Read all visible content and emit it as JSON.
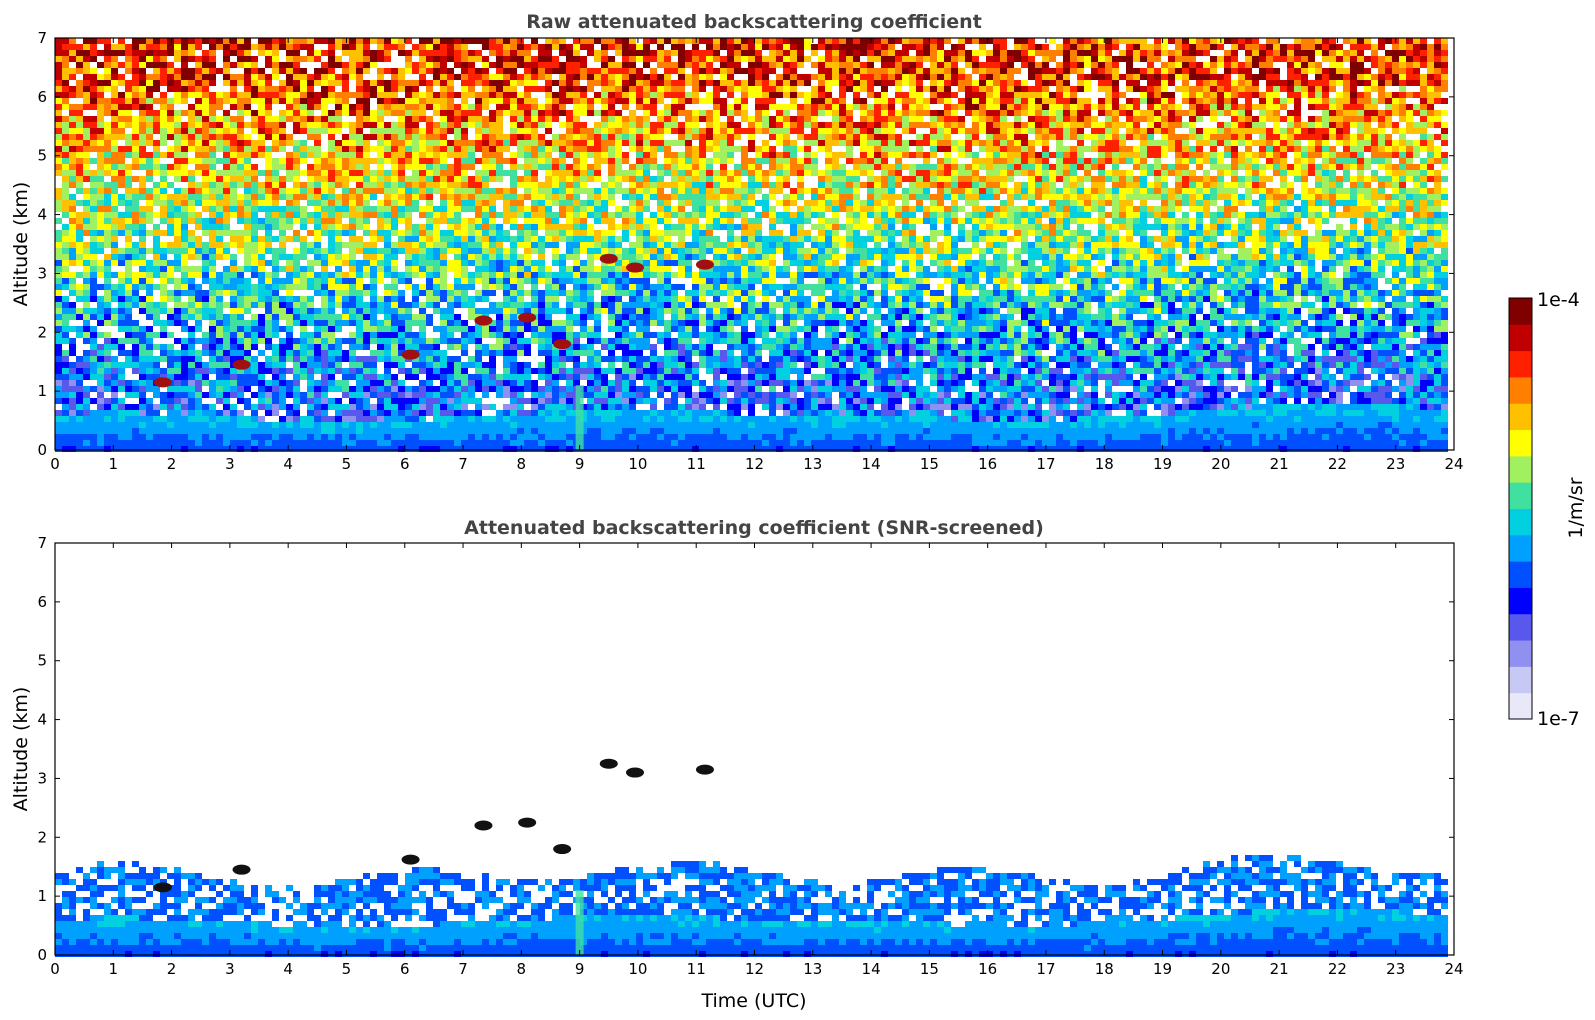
{
  "colors": {
    "colormap": [
      "#e8e8f8",
      "#c8c8f4",
      "#9090f0",
      "#5858ec",
      "#0000ff",
      "#0050ff",
      "#00a0ff",
      "#00d0e0",
      "#40e0a0",
      "#a0f060",
      "#ffff00",
      "#ffc000",
      "#ff8000",
      "#ff2000",
      "#c00000",
      "#800000"
    ],
    "title_color": "#444444",
    "background": "#ffffff"
  },
  "chart_data": [
    {
      "type": "heatmap",
      "title": "Raw attenuated backscattering coefficient",
      "xlabel": "",
      "ylabel": "Altitude (km)",
      "xlim": [
        0,
        24
      ],
      "ylim": [
        0,
        7
      ],
      "xticks": [
        "0",
        "1",
        "2",
        "3",
        "4",
        "5",
        "6",
        "7",
        "8",
        "9",
        "10",
        "11",
        "12",
        "13",
        "14",
        "15",
        "16",
        "17",
        "18",
        "19",
        "20",
        "21",
        "22",
        "23",
        "24"
      ],
      "yticks": [
        "0",
        "1",
        "2",
        "3",
        "4",
        "5",
        "6",
        "7"
      ],
      "screened": false,
      "features": [
        {
          "kind": "boundary-layer",
          "time": [
            0,
            23.85
          ],
          "top_km": [
            0.6,
            0.65,
            0.6,
            0.55,
            0.5,
            0.45,
            0.5,
            0.55,
            0.6,
            0.65,
            0.7,
            0.65,
            0.6,
            0.6,
            0.55,
            0.55,
            0.5,
            0.5,
            0.55,
            0.6,
            0.7,
            0.75,
            0.8,
            0.75,
            0.7
          ]
        },
        {
          "kind": "cloud",
          "time": 1.85,
          "altitude_km": 1.15
        },
        {
          "kind": "cloud",
          "time": 3.2,
          "altitude_km": 1.45
        },
        {
          "kind": "cloud",
          "time": 6.1,
          "altitude_km": 1.62
        },
        {
          "kind": "cloud",
          "time": 7.35,
          "altitude_km": 2.2
        },
        {
          "kind": "cloud",
          "time": 8.1,
          "altitude_km": 2.25
        },
        {
          "kind": "cloud",
          "time": 8.7,
          "altitude_km": 1.8
        },
        {
          "kind": "cloud",
          "time": 9.5,
          "altitude_km": 3.25
        },
        {
          "kind": "cloud",
          "time": 9.95,
          "altitude_km": 3.1
        },
        {
          "kind": "cloud",
          "time": 11.15,
          "altitude_km": 3.15
        },
        {
          "kind": "rain-streak",
          "time": 9.0,
          "altitude_km": 0.5
        }
      ]
    },
    {
      "type": "heatmap",
      "title": "Attenuated backscattering coefficient (SNR-screened)",
      "xlabel": "Time (UTC)",
      "ylabel": "Altitude (km)",
      "xlim": [
        0,
        24
      ],
      "ylim": [
        0,
        7
      ],
      "xticks": [
        "0",
        "1",
        "2",
        "3",
        "4",
        "5",
        "6",
        "7",
        "8",
        "9",
        "10",
        "11",
        "12",
        "13",
        "14",
        "15",
        "16",
        "17",
        "18",
        "19",
        "20",
        "21",
        "22",
        "23",
        "24"
      ],
      "yticks": [
        "0",
        "1",
        "2",
        "3",
        "4",
        "5",
        "6",
        "7"
      ],
      "screened": true,
      "features": []
    }
  ],
  "colorbar": {
    "label": "1/m/sr",
    "max_label": "1e-4",
    "min_label": "1e-7",
    "scale": "log",
    "range": [
      1e-07,
      0.0001
    ]
  }
}
